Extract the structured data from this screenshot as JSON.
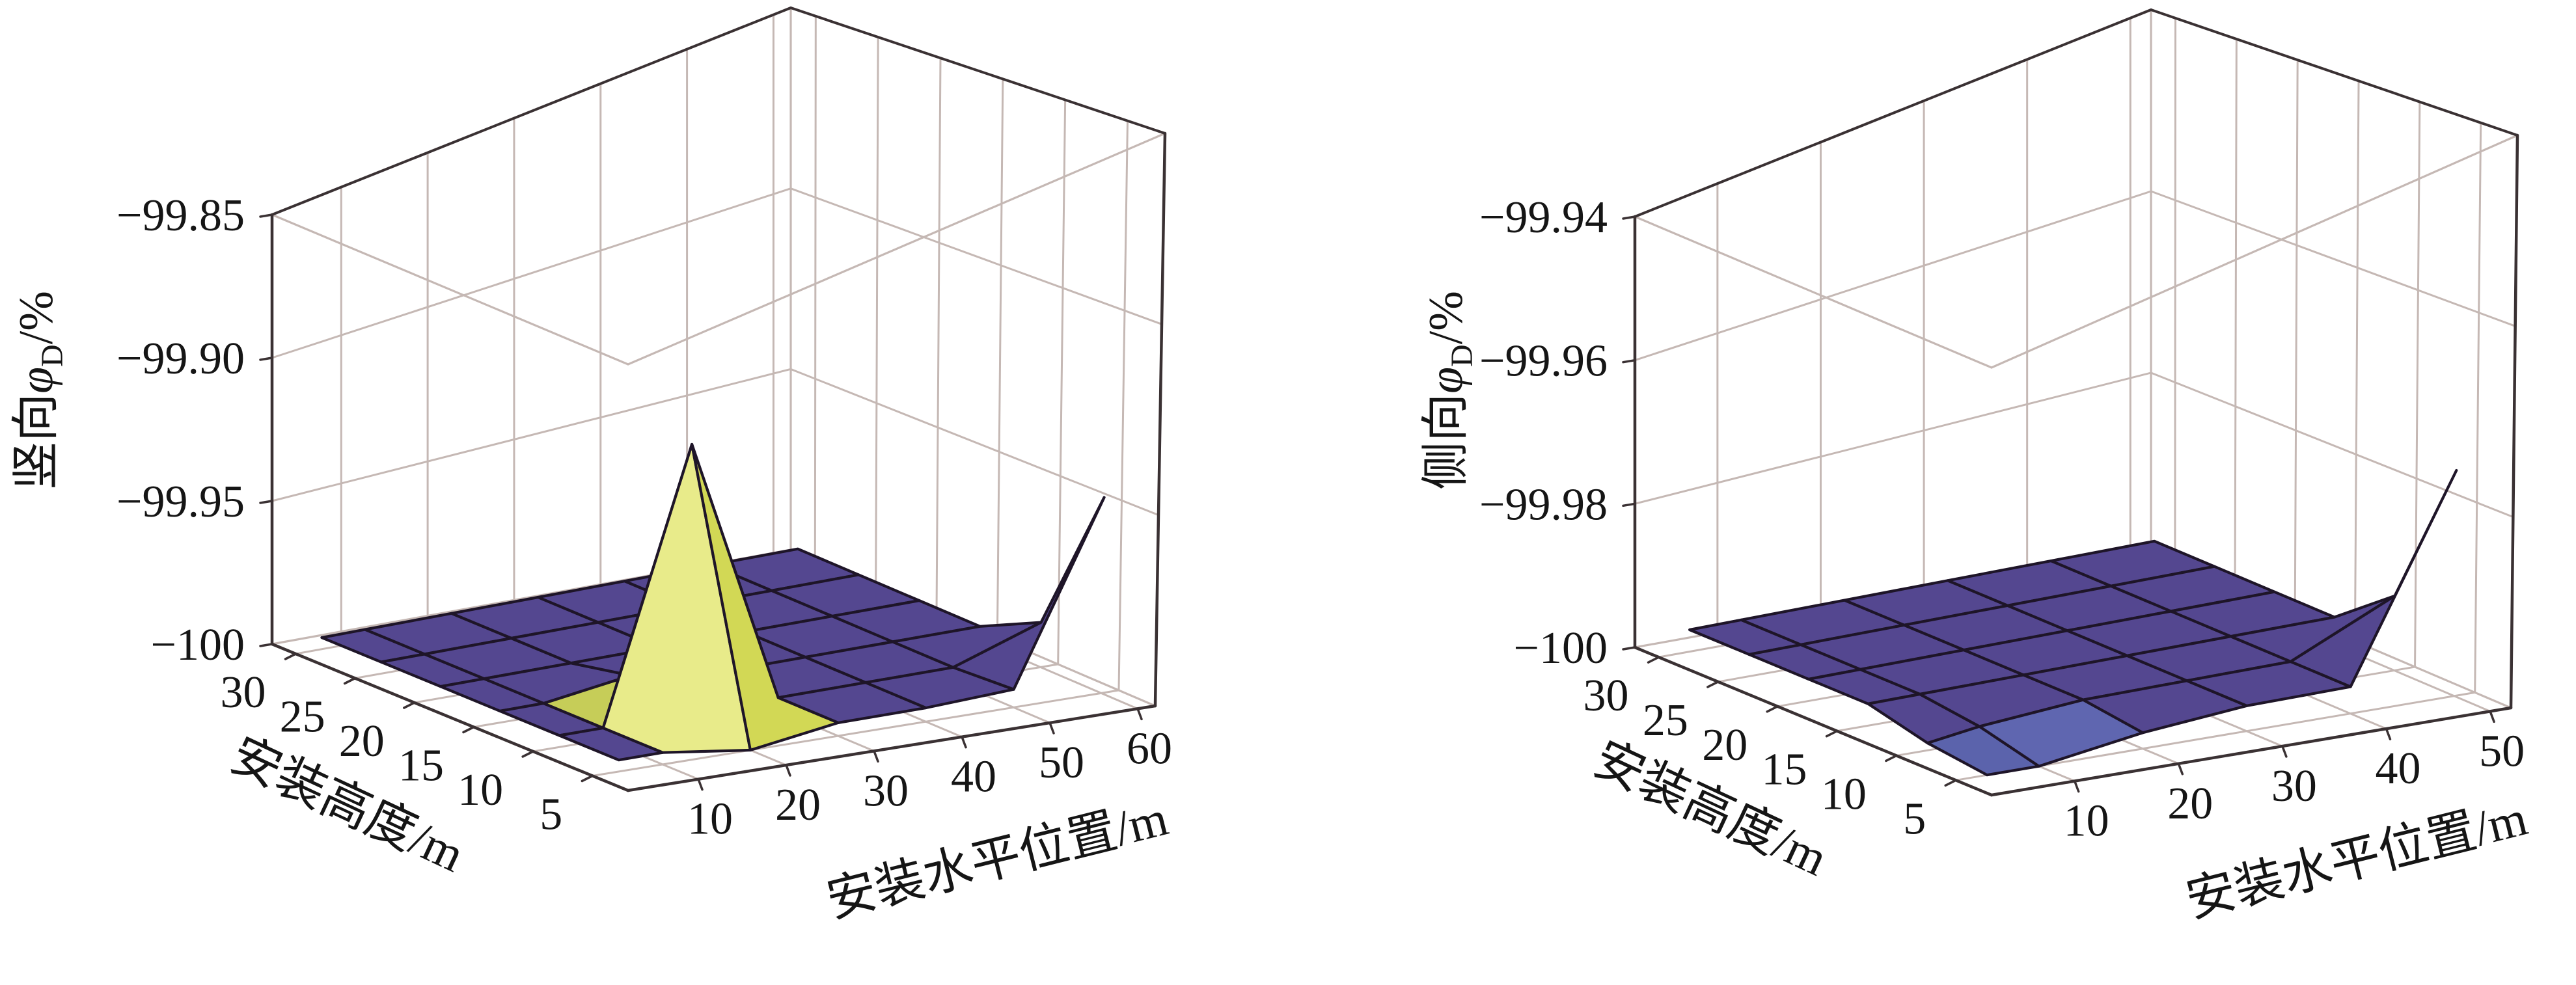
{
  "page": {
    "background": "#ffffff",
    "figure_type": "dual 3D surface plots"
  },
  "chart_data": [
    {
      "type": "surface3d",
      "panel": "left",
      "xlabel": "安装水平位置/m",
      "ylabel": "安装高度/m",
      "zlabel": {
        "prefix": "竖向",
        "symbol": "φ",
        "sub": "D",
        "suffix": "/%"
      },
      "x_ticks": [
        10,
        20,
        30,
        40,
        50,
        60
      ],
      "y_ticks": [
        30,
        25,
        20,
        15,
        10,
        5
      ],
      "z_ticks": [
        "−100",
        "−99.95",
        "−99.90",
        "−99.85"
      ],
      "z_tick_values": [
        -100,
        -99.95,
        -99.9,
        -99.85
      ],
      "xlim": [
        2,
        62
      ],
      "ylim": [
        2,
        32
      ],
      "zlim": [
        -100,
        -99.85
      ],
      "grid_on": true,
      "legend": "none",
      "grid_x": [
        5,
        10,
        20,
        30,
        40,
        50,
        60
      ],
      "grid_y": [
        5,
        10,
        15,
        20,
        25,
        30
      ],
      "z_values": [
        [
          -99.996,
          -99.996,
          -100.0,
          -99.996,
          -99.996,
          -99.995,
          -99.948
        ],
        [
          -99.996,
          -99.996,
          -99.91,
          -99.996,
          -99.996,
          -99.996,
          -99.988
        ],
        [
          -99.996,
          -99.996,
          -99.992,
          -99.996,
          -99.996,
          -99.996,
          -99.996
        ],
        [
          -99.996,
          -99.996,
          -99.996,
          -99.996,
          -99.996,
          -99.996,
          -99.996
        ],
        [
          -99.996,
          -99.996,
          -99.996,
          -99.996,
          -99.996,
          -99.996,
          -99.996
        ],
        [
          -99.996,
          -99.996,
          -99.996,
          -99.996,
          -99.996,
          -99.996,
          -99.996
        ]
      ],
      "annotations": {
        "peak": {
          "x": 20,
          "y": 10,
          "z": -99.91,
          "color_name": "yellow-spike"
        },
        "corner_fin": {
          "x": 60,
          "y": 5,
          "z": -99.948,
          "color_name": "purple-fin"
        }
      },
      "colors": {
        "surface": "#544790",
        "mesh": "#1e1528",
        "grid": "#c5b8b4",
        "edge": "#3a3133",
        "spike_left": "#e8eb8a",
        "spike_right": "#d2d855",
        "spike_back1": "#c6cd58",
        "spike_back2": "#b3ba4a",
        "text": "#151515"
      },
      "cell_colors": [
        {
          "xi": 1,
          "yi": 0,
          "color": "spike_left"
        },
        {
          "xi": 2,
          "yi": 0,
          "color": "spike_right"
        },
        {
          "xi": 1,
          "yi": 1,
          "color": "spike_back1"
        },
        {
          "xi": 2,
          "yi": 1,
          "color": "spike_back2"
        }
      ]
    },
    {
      "type": "surface3d",
      "panel": "right",
      "xlabel": "安装水平位置/m",
      "ylabel": "安装高度/m",
      "zlabel": {
        "prefix": "侧向",
        "symbol": "φ",
        "sub": "D",
        "suffix": "/%"
      },
      "x_ticks": [
        10,
        20,
        30,
        40,
        50
      ],
      "y_ticks": [
        30,
        25,
        20,
        15,
        10,
        5
      ],
      "z_ticks": [
        "−100",
        "−99.98",
        "−99.96",
        "−99.94"
      ],
      "z_tick_values": [
        -100,
        -99.98,
        -99.96,
        -99.94
      ],
      "xlim": [
        2,
        52
      ],
      "ylim": [
        2,
        32
      ],
      "zlim": [
        -100,
        -99.94
      ],
      "grid_on": true,
      "legend": "none",
      "grid_x": [
        5,
        10,
        20,
        30,
        40,
        50
      ],
      "grid_y": [
        5,
        10,
        15,
        20,
        25,
        30
      ],
      "z_values": [
        [
          -100.0,
          -100.0,
          -99.998,
          -99.997,
          -99.997,
          -99.976
        ],
        [
          -99.999,
          -99.998,
          -99.997,
          -99.997,
          -99.997,
          -99.992
        ],
        [
          -99.997,
          -99.997,
          -99.997,
          -99.997,
          -99.997,
          -99.997
        ],
        [
          -99.997,
          -99.997,
          -99.997,
          -99.997,
          -99.997,
          -99.997
        ],
        [
          -99.997,
          -99.997,
          -99.997,
          -99.997,
          -99.997,
          -99.997
        ],
        [
          -99.997,
          -99.997,
          -99.997,
          -99.997,
          -99.997,
          -99.997
        ]
      ],
      "annotations": {
        "corner_fin": {
          "x": 50,
          "y": 5,
          "z": -99.976,
          "color_name": "purple-fin"
        },
        "front_sag": {
          "x": "5–15",
          "y": 5,
          "z": -100,
          "color_name": "light-slate-sag"
        }
      },
      "colors": {
        "surface": "#544790",
        "mesh": "#1e1528",
        "grid": "#c5b8b4",
        "edge": "#3a3133",
        "sag1": "#5b63ac",
        "sag2": "#5f66b0",
        "text": "#151515"
      },
      "cell_colors": [
        {
          "xi": 0,
          "yi": 0,
          "color": "sag1"
        },
        {
          "xi": 1,
          "yi": 0,
          "color": "sag2"
        }
      ]
    }
  ]
}
